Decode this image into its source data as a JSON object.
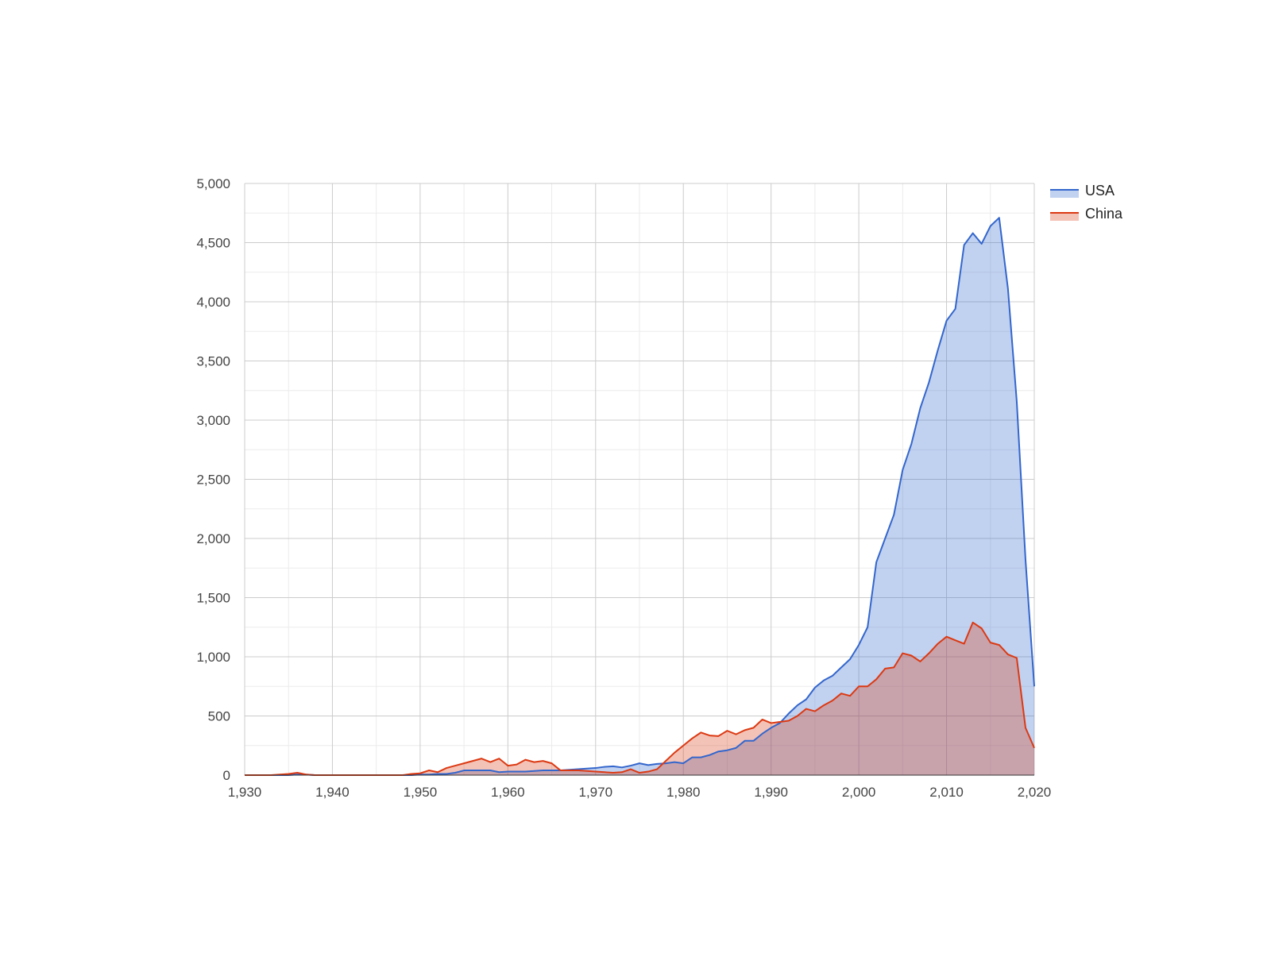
{
  "chart_data": {
    "type": "area",
    "title": "",
    "xlabel": "",
    "ylabel": "",
    "xlim": [
      1930,
      2020
    ],
    "ylim": [
      0,
      5000
    ],
    "x_ticks": [
      1930,
      1940,
      1950,
      1960,
      1970,
      1980,
      1990,
      2000,
      2010,
      2020
    ],
    "x_tick_labels": [
      "1,930",
      "1,940",
      "1,950",
      "1,960",
      "1,970",
      "1,980",
      "1,990",
      "2,000",
      "2,010",
      "2,020"
    ],
    "y_ticks": [
      0,
      500,
      1000,
      1500,
      2000,
      2500,
      3000,
      3500,
      4000,
      4500,
      5000
    ],
    "y_tick_labels": [
      "0",
      "500",
      "1,000",
      "1,500",
      "2,000",
      "2,500",
      "3,000",
      "3,500",
      "4,000",
      "4,500",
      "5,000"
    ],
    "grid": true,
    "legend_position": "right",
    "x": [
      1930,
      1931,
      1932,
      1933,
      1934,
      1935,
      1936,
      1937,
      1938,
      1939,
      1940,
      1941,
      1942,
      1943,
      1944,
      1945,
      1946,
      1947,
      1948,
      1949,
      1950,
      1951,
      1952,
      1953,
      1954,
      1955,
      1956,
      1957,
      1958,
      1959,
      1960,
      1961,
      1962,
      1963,
      1964,
      1965,
      1966,
      1967,
      1968,
      1969,
      1970,
      1971,
      1972,
      1973,
      1974,
      1975,
      1976,
      1977,
      1978,
      1979,
      1980,
      1981,
      1982,
      1983,
      1984,
      1985,
      1986,
      1987,
      1988,
      1989,
      1990,
      1991,
      1992,
      1993,
      1994,
      1995,
      1996,
      1997,
      1998,
      1999,
      2000,
      2001,
      2002,
      2003,
      2004,
      2005,
      2006,
      2007,
      2008,
      2009,
      2010,
      2011,
      2012,
      2013,
      2014,
      2015,
      2016,
      2017,
      2018,
      2019,
      2020
    ],
    "series": [
      {
        "name": "USA",
        "color": "#3366cc",
        "fill": "#3366cc",
        "values": [
          0,
          0,
          0,
          0,
          0,
          0,
          5,
          5,
          0,
          0,
          0,
          0,
          0,
          0,
          0,
          0,
          0,
          0,
          0,
          0,
          5,
          5,
          10,
          10,
          20,
          40,
          40,
          40,
          40,
          25,
          30,
          30,
          30,
          35,
          40,
          40,
          40,
          45,
          50,
          55,
          60,
          70,
          75,
          65,
          80,
          100,
          85,
          95,
          100,
          110,
          100,
          150,
          150,
          170,
          200,
          210,
          230,
          290,
          290,
          350,
          400,
          440,
          520,
          590,
          640,
          740,
          800,
          840,
          910,
          980,
          1100,
          1250,
          1800,
          2000,
          2200,
          2580,
          2800,
          3100,
          3320,
          3590,
          3840,
          3940,
          4480,
          4580,
          4490,
          4640,
          4710,
          4110,
          3160,
          1820,
          750
        ]
      },
      {
        "name": "China",
        "color": "#dc3912",
        "fill": "#dc3912",
        "values": [
          0,
          0,
          0,
          0,
          5,
          10,
          20,
          5,
          0,
          0,
          0,
          0,
          0,
          0,
          0,
          0,
          0,
          0,
          0,
          10,
          15,
          40,
          25,
          60,
          80,
          100,
          120,
          140,
          110,
          140,
          80,
          90,
          130,
          110,
          120,
          100,
          40,
          40,
          40,
          35,
          30,
          25,
          20,
          25,
          50,
          20,
          30,
          50,
          120,
          190,
          250,
          310,
          360,
          335,
          330,
          375,
          345,
          380,
          400,
          470,
          440,
          450,
          460,
          500,
          560,
          540,
          590,
          630,
          690,
          670,
          750,
          750,
          810,
          900,
          910,
          1030,
          1010,
          960,
          1030,
          1110,
          1170,
          1140,
          1110,
          1290,
          1240,
          1120,
          1100,
          1020,
          990,
          400,
          230
        ]
      }
    ]
  }
}
